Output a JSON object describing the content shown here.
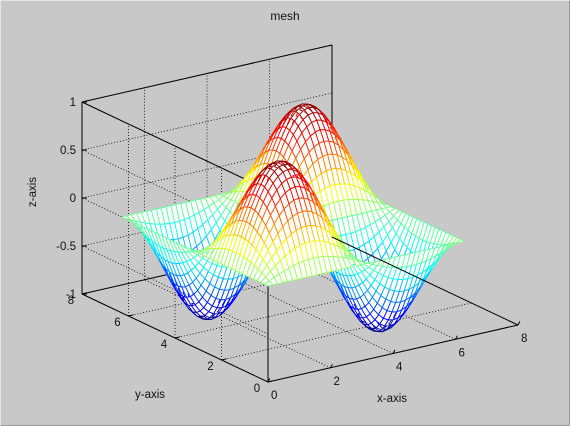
{
  "chart_data": {
    "type": "mesh3d",
    "title": "mesh",
    "xlabel": "x-axis",
    "ylabel": "y-axis",
    "zlabel": "z-axis",
    "xlim": [
      0,
      8
    ],
    "ylim": [
      0,
      8
    ],
    "zlim": [
      -1,
      1
    ],
    "xticks": [
      "0",
      "2",
      "4",
      "6",
      "8"
    ],
    "yticks": [
      "0",
      "2",
      "4",
      "6",
      "8"
    ],
    "zticks": [
      "-1",
      "-0.5",
      "0",
      "0.5",
      "1"
    ],
    "function": "z = sin(x) * sin(y)",
    "x_range": [
      0,
      6.283
    ],
    "y_range": [
      0,
      6.283
    ],
    "grid": true,
    "box": true,
    "colormap": "jet"
  }
}
